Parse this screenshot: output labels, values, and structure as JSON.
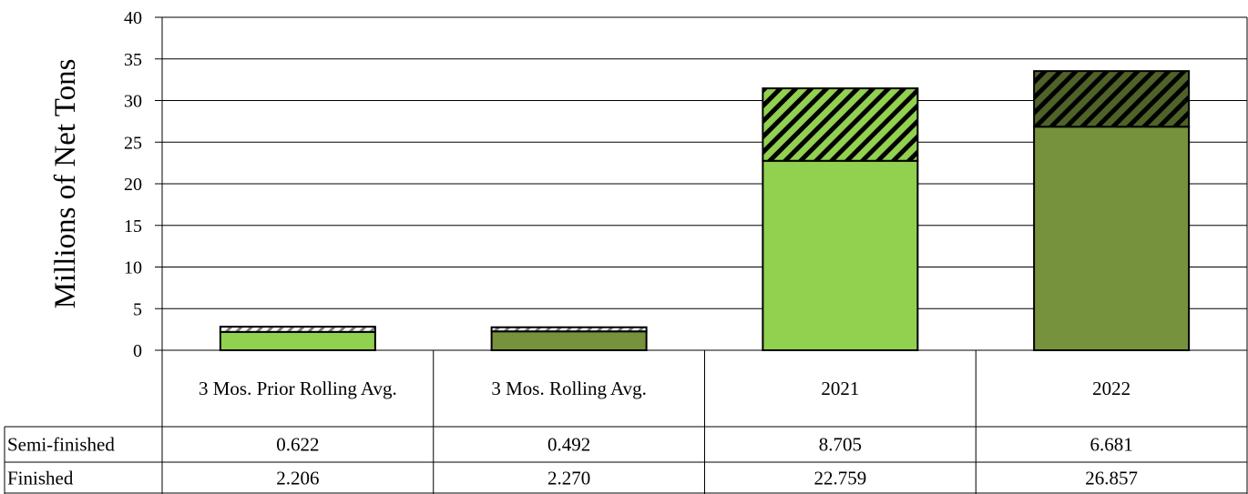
{
  "chart_data": {
    "type": "bar",
    "stacked": true,
    "ylabel": "Millions of Net Tons",
    "ylim": [
      0,
      40
    ],
    "yticks": [
      0,
      5,
      10,
      15,
      20,
      25,
      30,
      35,
      40
    ],
    "grid": true,
    "categories": [
      "3 Mos. Prior Rolling Avg.",
      "3 Mos. Rolling Avg.",
      "2021",
      "2022"
    ],
    "series": [
      {
        "name": "Finished",
        "values": [
          2.206,
          2.27,
          22.759,
          26.857
        ],
        "value_labels": [
          "2.206",
          "2.270",
          "22.759",
          "26.857"
        ]
      },
      {
        "name": "Semi-finished",
        "values": [
          0.622,
          0.492,
          8.705,
          6.681
        ],
        "value_labels": [
          "0.622",
          "0.492",
          "8.705",
          "6.681"
        ]
      }
    ],
    "table_rows_order": [
      "Semi-finished",
      "Finished"
    ],
    "colors": {
      "light_green": "#92d050",
      "dark_green": "#76923c",
      "hatch_light_bg": "#92d050",
      "hatch_dark_bg": "#4f6228"
    }
  }
}
